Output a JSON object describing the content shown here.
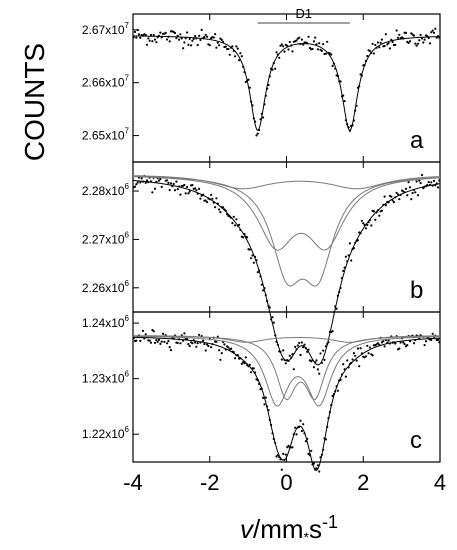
{
  "ylabel": "COUNTS",
  "xlabel_italic": "v",
  "xlabel_rest": "/mm",
  "xlabel_sep": "*",
  "xlabel_unit": "s",
  "xlabel_exp": "-1",
  "chart_data": [
    {
      "type": "scatter",
      "panel": "a",
      "xlim": [
        -4,
        4
      ],
      "ylim": [
        26450000,
        26730000
      ],
      "x_ticks": [
        -4,
        -2,
        0,
        2,
        4
      ],
      "x_tick_labels": [
        "-4",
        "-2",
        "0",
        "2",
        "4"
      ],
      "y_ticks": [
        26500000,
        26600000,
        26700000
      ],
      "y_tick_labels": [
        {
          "mantissa": "2.65x10",
          "exp": "7"
        },
        {
          "mantissa": "2.66x10",
          "exp": "7"
        },
        {
          "mantissa": "2.67x10",
          "exp": "7"
        }
      ],
      "baseline": 26690000,
      "noise": 8000,
      "components": [
        {
          "name": "D1",
          "type": "doublet",
          "center": 0.45,
          "split": 2.4,
          "depth": 178000,
          "width": 0.26
        }
      ],
      "annotations": [
        {
          "text": "D1",
          "x_from": -0.75,
          "x_to": 1.65,
          "y": 26713000
        }
      ],
      "grid": false
    },
    {
      "type": "scatter",
      "panel": "b",
      "xlim": [
        -4,
        4
      ],
      "ylim": [
        2255000,
        2286000
      ],
      "x_ticks": [
        -4,
        -2,
        0,
        2,
        4
      ],
      "x_tick_labels": [
        "-4",
        "-2",
        "0",
        "2",
        "4"
      ],
      "y_ticks": [
        2260000,
        2270000,
        2280000
      ],
      "y_tick_labels": [
        {
          "mantissa": "2.26x10",
          "exp": "6"
        },
        {
          "mantissa": "2.27x10",
          "exp": "6"
        },
        {
          "mantissa": "2.28x10",
          "exp": "6"
        }
      ],
      "baseline": 2283500,
      "noise": 900,
      "components": [
        {
          "type": "doublet",
          "center": 0.38,
          "split": 1.3,
          "depth": 13300,
          "width": 0.6
        },
        {
          "type": "doublet",
          "center": 0.42,
          "split": 0.8,
          "depth": 17800,
          "width": 0.5
        },
        {
          "type": "doublet",
          "center": 0.35,
          "split": 3.0,
          "depth": 2800,
          "width": 0.9
        }
      ],
      "grid": false
    },
    {
      "type": "scatter",
      "panel": "c",
      "xlim": [
        -4,
        4
      ],
      "ylim": [
        1215000,
        1242000
      ],
      "x_ticks": [
        -4,
        -2,
        0,
        2,
        4
      ],
      "x_tick_labels": [
        "-4",
        "-2",
        "0",
        "2",
        "4"
      ],
      "y_ticks": [
        1220000,
        1230000,
        1240000
      ],
      "y_tick_labels": [
        {
          "mantissa": "1.22x10",
          "exp": "6"
        },
        {
          "mantissa": "1.23x10",
          "exp": "6"
        },
        {
          "mantissa": "1.24x10",
          "exp": "6"
        }
      ],
      "baseline": 1237800,
      "noise": 700,
      "components": [
        {
          "type": "doublet",
          "center": 0.3,
          "split": 1.1,
          "depth": 11500,
          "width": 0.38
        },
        {
          "type": "doublet",
          "center": 0.37,
          "split": 0.75,
          "depth": 10000,
          "width": 0.32
        },
        {
          "type": "doublet",
          "center": 0.3,
          "split": 2.7,
          "depth": 1200,
          "width": 0.6
        }
      ],
      "grid": false
    }
  ]
}
